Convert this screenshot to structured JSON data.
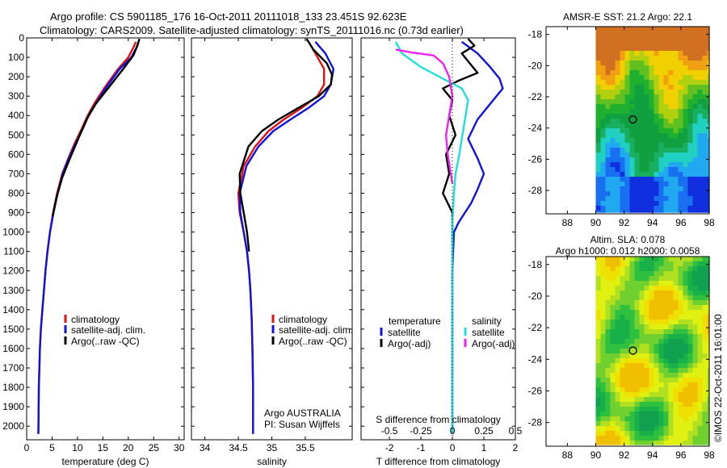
{
  "header": {
    "line1": "Argo profile: CS 5901185_176 16-Oct-2011 20111018_133 23.451S 92.623E",
    "line2": "Climatology: CARS2009. Satellite-adjusted climatology: synTS_20111016.nc (0.73d earlier)"
  },
  "colors": {
    "climatology": "#dd1111",
    "satellite": "#1111dd",
    "argo": "#000000",
    "argo_salt": "#ee22ee",
    "sat_salt": "#22dddd"
  },
  "chart_data": [
    {
      "id": "temperature",
      "type": "line",
      "xlabel": "temperature (deg C)",
      "xlim": [
        0,
        31
      ],
      "ylim": [
        0,
        2070
      ],
      "y_inverted": true,
      "xticks": [
        0,
        5,
        10,
        15,
        20,
        25,
        30
      ],
      "yticks": [
        0,
        100,
        200,
        300,
        400,
        500,
        600,
        700,
        800,
        900,
        1000,
        1100,
        1200,
        1300,
        1400,
        1500,
        1600,
        1700,
        1800,
        1900,
        2000
      ],
      "legend": [
        "climatology",
        "satellite-adj. clim.",
        "Argo(..raw -QC)"
      ],
      "series": [
        {
          "name": "climatology",
          "color": "#dd1111",
          "x": [
            21.5,
            21.0,
            20.0,
            18.0,
            15.5,
            13.5,
            12.0,
            10.8,
            9.5,
            8.2,
            7.0,
            6.0,
            5.2,
            4.6,
            4.1,
            3.7,
            3.4,
            3.1,
            2.8,
            2.6,
            2.4,
            2.3
          ],
          "y": [
            20,
            50,
            100,
            160,
            250,
            330,
            400,
            470,
            540,
            620,
            700,
            800,
            900,
            1000,
            1100,
            1200,
            1300,
            1400,
            1500,
            1600,
            1800,
            2040
          ]
        },
        {
          "name": "satellite-adj. clim.",
          "color": "#1111dd",
          "x": [
            22.0,
            21.6,
            20.6,
            18.3,
            15.8,
            13.8,
            12.2,
            11.0,
            9.7,
            8.3,
            7.1,
            6.1,
            5.3,
            4.6,
            4.1,
            3.7,
            3.4,
            3.1,
            2.8,
            2.6,
            2.4,
            2.3
          ],
          "y": [
            20,
            50,
            100,
            160,
            250,
            330,
            400,
            470,
            540,
            620,
            700,
            800,
            900,
            1000,
            1100,
            1200,
            1300,
            1400,
            1500,
            1600,
            1800,
            2040
          ]
        },
        {
          "name": "Argo(..raw -QC)",
          "color": "#000000",
          "x": [
            22.2,
            21.8,
            21.0,
            19.0,
            16.0,
            13.6,
            12.0,
            10.8,
            9.5,
            8.2,
            7.0,
            5.9,
            5.1
          ],
          "y": [
            5,
            40,
            90,
            160,
            260,
            340,
            410,
            480,
            560,
            640,
            720,
            820,
            920
          ]
        }
      ]
    },
    {
      "id": "salinity",
      "type": "line",
      "xlabel": "salinity",
      "xlim": [
        33.8,
        36.2
      ],
      "ylim": [
        0,
        2070
      ],
      "y_inverted": true,
      "xticks": [
        34,
        34.5,
        35,
        35.5
      ],
      "legend": [
        "climatology",
        "satellite-adj. clim.",
        "Argo(..raw -QC)"
      ],
      "annotation": [
        "Argo AUSTRALIA",
        "PI: Susan Wijffels"
      ],
      "series": [
        {
          "name": "climatology",
          "color": "#dd1111",
          "x": [
            35.55,
            35.65,
            35.78,
            35.78,
            35.68,
            35.45,
            35.18,
            34.95,
            34.75,
            34.58,
            34.5,
            34.52,
            34.58,
            34.63,
            34.66,
            34.68,
            34.7,
            34.71,
            34.72,
            34.72
          ],
          "y": [
            20,
            80,
            160,
            240,
            300,
            360,
            420,
            480,
            560,
            660,
            800,
            900,
            1000,
            1100,
            1200,
            1300,
            1450,
            1600,
            1800,
            2040
          ]
        },
        {
          "name": "satellite-adj. clim.",
          "color": "#1111dd",
          "x": [
            35.65,
            35.8,
            35.92,
            35.88,
            35.78,
            35.55,
            35.28,
            35.02,
            34.8,
            34.62,
            34.52,
            34.53,
            34.58,
            34.63,
            34.66,
            34.68,
            34.7,
            34.71,
            34.72,
            34.72
          ],
          "y": [
            20,
            80,
            160,
            240,
            300,
            360,
            420,
            480,
            560,
            660,
            800,
            900,
            1000,
            1100,
            1200,
            1300,
            1450,
            1600,
            1800,
            2040
          ]
        },
        {
          "name": "Argo(..raw -QC)",
          "color": "#000000",
          "x": [
            35.52,
            35.62,
            35.82,
            35.9,
            35.88,
            35.7,
            35.4,
            35.1,
            34.85,
            34.65,
            34.52,
            34.53,
            34.58,
            34.63,
            34.66
          ],
          "y": [
            5,
            60,
            130,
            190,
            240,
            300,
            360,
            420,
            480,
            560,
            700,
            800,
            900,
            1000,
            1100
          ]
        }
      ]
    },
    {
      "id": "differences",
      "type": "line",
      "xlabel": "T difference from climatology",
      "x2label": "S difference from climatology",
      "xlim": [
        -2.9,
        2.0
      ],
      "ylim": [
        0,
        2070
      ],
      "y_inverted": true,
      "xticks": [
        -2,
        -1,
        0,
        1,
        2
      ],
      "x2ticks": [
        -0.5,
        -0.25,
        0,
        0.25,
        0.5
      ],
      "legend_headers": [
        "temperature",
        "salinity"
      ],
      "legend": [
        "satellite",
        "Argo(-adj)",
        "satellite",
        "Argo(-adj)"
      ],
      "series": [
        {
          "name": "temperature satellite",
          "color": "#1111dd",
          "x": [
            0.3,
            0.8,
            1.2,
            1.5,
            1.6,
            1.3,
            0.8,
            0.5,
            0.8,
            1.0,
            0.8,
            0.6,
            0.4,
            0.2,
            0.05,
            0.0,
            0.0
          ],
          "y": [
            20,
            80,
            150,
            210,
            260,
            320,
            420,
            520,
            620,
            700,
            780,
            850,
            900,
            950,
            1000,
            1200,
            2040
          ]
        },
        {
          "name": "temperature Argo(-adj)",
          "color": "#000000",
          "x": [
            0.5,
            0.7,
            0.3,
            0.6,
            0.8,
            0.2,
            -0.3,
            0.0,
            -0.1,
            0.1,
            -0.2,
            -0.1,
            -0.3,
            0.0,
            0.0
          ],
          "y": [
            5,
            40,
            80,
            140,
            180,
            220,
            260,
            320,
            400,
            500,
            600,
            700,
            800,
            900,
            1050
          ]
        },
        {
          "name": "salinity satellite",
          "color": "#22dddd",
          "x": [
            -1.8,
            -1.6,
            -1.0,
            -0.3,
            0.3,
            0.5,
            0.4,
            0.3,
            0.2,
            0.1,
            0.05,
            0.0,
            0.0
          ],
          "y": [
            20,
            80,
            150,
            210,
            260,
            320,
            420,
            520,
            620,
            700,
            800,
            950,
            2040
          ]
        },
        {
          "name": "salinity Argo(-adj)",
          "color": "#ee22ee",
          "x": [
            -1.8,
            -1.3,
            -0.6,
            -0.3,
            -0.1,
            0.0,
            -0.1,
            -0.2,
            -0.15,
            -0.05,
            0.0
          ],
          "y": [
            60,
            75,
            90,
            130,
            200,
            300,
            400,
            500,
            600,
            700,
            750
          ]
        }
      ]
    },
    {
      "id": "sst_map",
      "type": "heatmap",
      "title": "AMSR-E SST: 21.2  Argo: 22.1",
      "xlim": [
        86.5,
        98
      ],
      "ylim": [
        -29.5,
        -17.5
      ],
      "xticks": [
        88,
        90,
        92,
        94,
        96,
        98
      ],
      "yticks": [
        -18,
        -20,
        -22,
        -24,
        -26,
        -28
      ],
      "data_region": {
        "lon": [
          90,
          98
        ],
        "lat": [
          -29.4,
          -17.5
        ]
      },
      "argo_position": {
        "lon": 92.623,
        "lat": -23.451
      }
    },
    {
      "id": "sla_map",
      "type": "heatmap",
      "title": [
        "Altim. SLA: 0.078",
        "Argo h1000: 0.012 h2000: 0.0058"
      ],
      "xlim": [
        86.5,
        98
      ],
      "ylim": [
        -29.5,
        -17.5
      ],
      "xticks": [
        88,
        90,
        92,
        94,
        96,
        98
      ],
      "yticks": [
        -18,
        -20,
        -22,
        -24,
        -26,
        -28
      ],
      "data_region": {
        "lon": [
          90,
          98
        ],
        "lat": [
          -29.4,
          -17.5
        ]
      },
      "argo_position": {
        "lon": 92.623,
        "lat": -23.451
      },
      "side_text": "©IMOS 22-Oct-2011 16:01:00"
    }
  ]
}
